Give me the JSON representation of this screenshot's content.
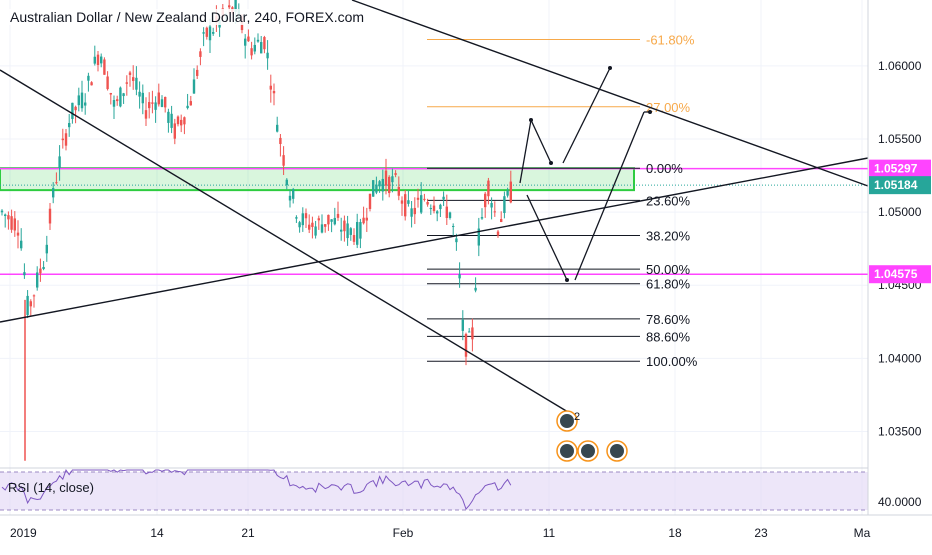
{
  "chart_title": "Australian Dollar / New Zealand Dollar, 240, FOREX.com",
  "rsi_label": "RSI (14, close)",
  "colors": {
    "up": "#26a69a",
    "down": "#ef5350",
    "fib_top": "#f7a94a",
    "fib": "#131722",
    "magenta": "#ff44ff",
    "green_zone": "#2ecc40",
    "trend": "#131722",
    "rsi_band": "#e1d5f5",
    "rsi_line": "#7e57c2"
  },
  "price_axis": {
    "ticks": [
      "1.06000",
      "1.05500",
      "1.05000",
      "1.04500",
      "1.04000",
      "1.03500"
    ],
    "tick_values": [
      1.06,
      1.055,
      1.05,
      1.045,
      1.04,
      1.035
    ],
    "labels": [
      {
        "text": "1.05297",
        "value": 1.05297,
        "color": "#ff44ff"
      },
      {
        "text": "1.05184",
        "value": 1.05184,
        "color": "#26a69a"
      },
      {
        "text": "1.04575",
        "value": 1.04575,
        "color": "#ff44ff"
      }
    ]
  },
  "rsi_axis": {
    "tick": "40.0000",
    "value": 40
  },
  "time_axis": {
    "ticks": [
      "2019",
      "14",
      "21",
      "Feb",
      "11",
      "18",
      "23",
      "Ma"
    ]
  },
  "chart_data": {
    "type": "candlestick",
    "title": "Australian Dollar / New Zealand Dollar, 240, FOREX.com",
    "ylim": [
      1.0325,
      1.0645
    ],
    "fib_levels": [
      {
        "text": "-61.80%",
        "price": 1.0618,
        "color": "#f7a94a"
      },
      {
        "text": "27.00%",
        "price": 1.0572,
        "color": "#f7a94a"
      },
      {
        "text": "0.00%",
        "price": 1.053,
        "color": "#131722"
      },
      {
        "text": "23.60%",
        "price": 1.0508,
        "color": "#131722"
      },
      {
        "text": "38.20%",
        "price": 1.0484,
        "color": "#131722"
      },
      {
        "text": "50.00%",
        "price": 1.0461,
        "color": "#131722"
      },
      {
        "text": "61.80%",
        "price": 1.0451,
        "color": "#131722"
      },
      {
        "text": "78.60%",
        "price": 1.0427,
        "color": "#131722"
      },
      {
        "text": "88.60%",
        "price": 1.0415,
        "color": "#131722"
      },
      {
        "text": "100.00%",
        "price": 1.0398,
        "color": "#131722"
      }
    ],
    "horizontal_lines": [
      {
        "price": 1.05297,
        "color": "#ff44ff"
      },
      {
        "price": 1.04575,
        "color": "#ff44ff"
      }
    ],
    "events_marker": "2"
  }
}
